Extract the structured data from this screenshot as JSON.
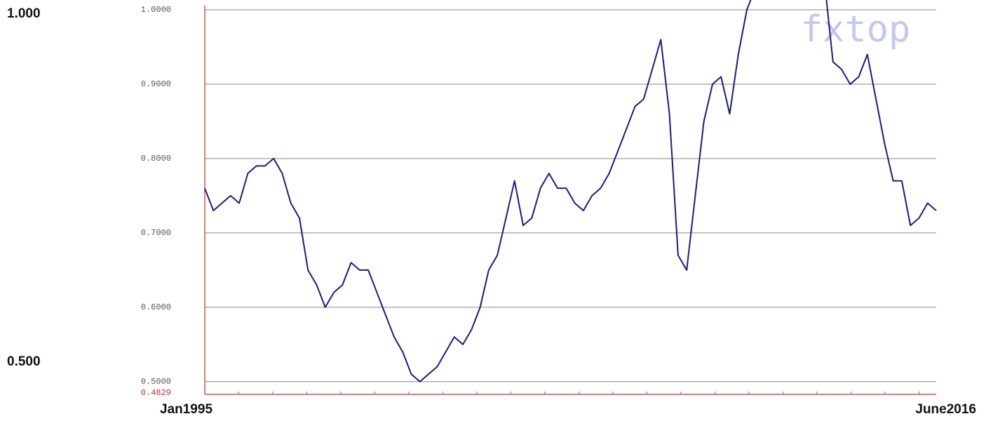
{
  "chart_data": {
    "type": "line",
    "watermark": "fxtop",
    "categories": [
      "Jan1995",
      null,
      null,
      null,
      null,
      null,
      null,
      null,
      null,
      null,
      null,
      null,
      null,
      null,
      null,
      null,
      null,
      null,
      null,
      null,
      null,
      null,
      null,
      null,
      null,
      null,
      null,
      null,
      null,
      null,
      null,
      null,
      null,
      null,
      null,
      null,
      null,
      null,
      null,
      null,
      null,
      null,
      null,
      null,
      null,
      null,
      null,
      null,
      null,
      null,
      null,
      null,
      null,
      null,
      null,
      null,
      null,
      null,
      null,
      null,
      null,
      null,
      null,
      null,
      null,
      null,
      null,
      null,
      null,
      null,
      null,
      null,
      null,
      null,
      null,
      null,
      null,
      null,
      null,
      null,
      null,
      null,
      null,
      null,
      null,
      "June2016"
    ],
    "series": [
      {
        "color": "#1a1a8c",
        "values": [
          0.76,
          0.73,
          0.74,
          0.75,
          0.74,
          0.78,
          0.79,
          0.79,
          0.8,
          0.78,
          0.74,
          0.72,
          0.65,
          0.63,
          0.6,
          0.62,
          0.63,
          0.66,
          0.65,
          0.65,
          0.62,
          0.59,
          0.56,
          0.54,
          0.51,
          0.5,
          0.51,
          0.52,
          0.54,
          0.56,
          0.55,
          0.57,
          0.6,
          0.65,
          0.67,
          0.72,
          0.77,
          0.71,
          0.72,
          0.76,
          0.78,
          0.76,
          0.76,
          0.74,
          0.73,
          0.75,
          0.76,
          0.78,
          0.81,
          0.84,
          0.87,
          0.88,
          0.92,
          0.96,
          0.86,
          0.67,
          0.65,
          0.75,
          0.85,
          0.9,
          0.91,
          0.86,
          0.94,
          1.0,
          1.03,
          1.07,
          1.05,
          1.02,
          1.05,
          1.02,
          1.04,
          1.04,
          1.04,
          0.93,
          0.92,
          0.9,
          0.91,
          0.94,
          0.88,
          0.82,
          0.77,
          0.77,
          0.71,
          0.72,
          0.74,
          0.73
        ]
      }
    ],
    "ylim": [
      0.4829,
      1.0132
    ],
    "yticks": [
      {
        "value": 0.4829,
        "label": "0.4829"
      },
      {
        "value": 0.5,
        "label": "0.5000"
      },
      {
        "value": 0.6,
        "label": "0.6000"
      },
      {
        "value": 0.7,
        "label": "0.7000"
      },
      {
        "value": 0.8,
        "label": "0.8000"
      },
      {
        "value": 0.9,
        "label": "0.9000"
      },
      {
        "value": 1.0,
        "label": "1.0000"
      }
    ],
    "outer_labels": [
      {
        "value": 1.0,
        "label": "1.000"
      },
      {
        "value": 0.5,
        "label": "0.500"
      }
    ],
    "grid": true
  }
}
